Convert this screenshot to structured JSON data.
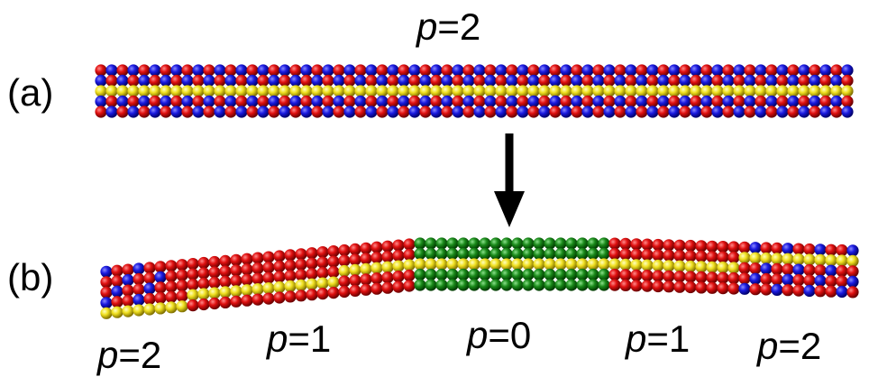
{
  "panels": [
    {
      "label": "(a)",
      "phases": [
        {
          "symbol": "p",
          "text": "=2"
        }
      ]
    },
    {
      "label": "(b)",
      "phases": [
        {
          "symbol": "p",
          "text": "=2"
        },
        {
          "symbol": "p",
          "text": "=1"
        },
        {
          "symbol": "p",
          "text": "=0"
        },
        {
          "symbol": "p",
          "text": "=1"
        },
        {
          "symbol": "p",
          "text": "=2"
        }
      ]
    }
  ]
}
